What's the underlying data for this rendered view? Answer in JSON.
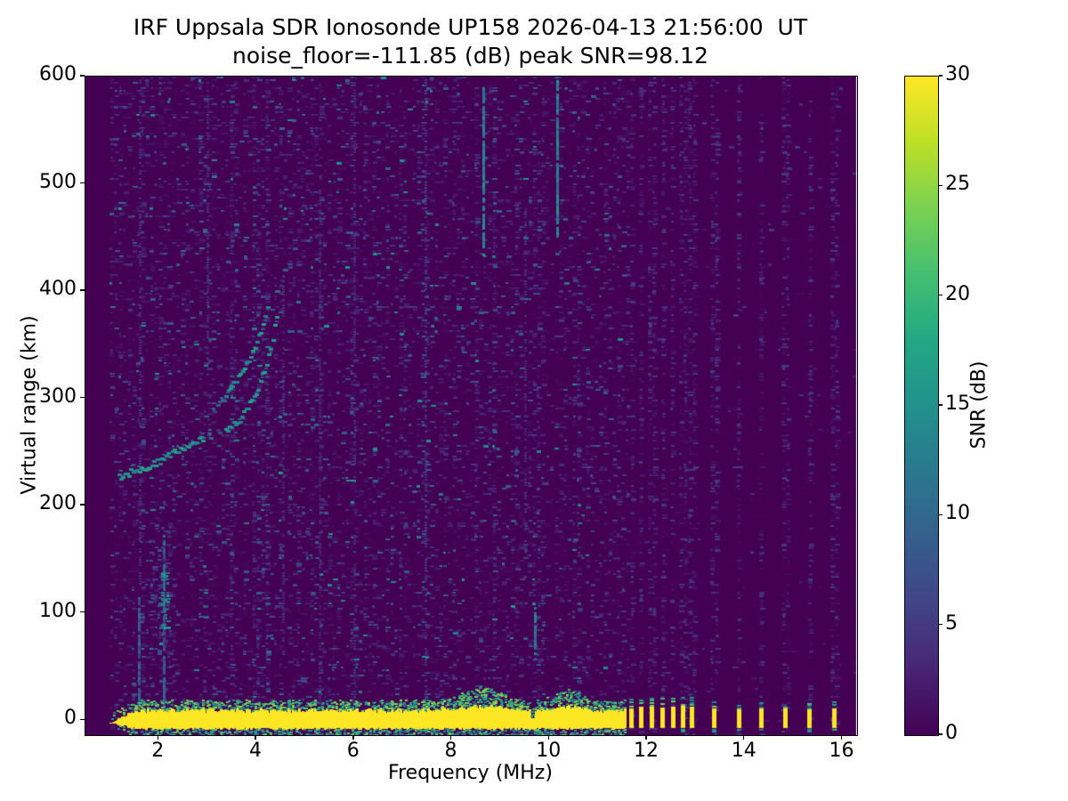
{
  "chart_data": {
    "type": "heatmap",
    "title": "IRF Uppsala SDR Ionosonde UP158 2026-04-13 21:56:00  UT",
    "subtitle": "noise_floor=-111.85 (dB) peak SNR=98.12",
    "xlabel": "Frequency (MHz)",
    "ylabel": "Virtual range (km)",
    "colorbar_label": "SNR (dB)",
    "noise_floor_db": -111.85,
    "peak_snr_db": 98.12,
    "station": "IRF Uppsala SDR Ionosonde UP158",
    "timestamp_ut": "2026-04-13 21:56:00",
    "xlim": [
      0.5,
      16.3
    ],
    "ylim": [
      -14,
      600
    ],
    "clim": [
      0,
      30
    ],
    "x_ticks": [
      2,
      4,
      6,
      8,
      10,
      12,
      14,
      16
    ],
    "y_ticks": [
      0,
      100,
      200,
      300,
      400,
      500,
      600
    ],
    "colorbar_ticks": [
      0,
      5,
      10,
      15,
      20,
      25,
      30
    ],
    "colormap": "viridis",
    "viridis_stops": [
      "#440154",
      "#482475",
      "#414487",
      "#355f8d",
      "#2a788e",
      "#21918c",
      "#22a884",
      "#44bf70",
      "#7ad151",
      "#bddf26",
      "#fde725"
    ],
    "freq_range_mhz": [
      1.0,
      16.27
    ],
    "ground_return": {
      "continuous_mhz": [
        1.0,
        11.55
      ],
      "core_km": [
        -7,
        9
      ],
      "fringe_top_km": 17,
      "bulges": [
        {
          "center_mhz": 8.6,
          "sigma_mhz": 0.55,
          "extra_km": 9
        },
        {
          "center_mhz": 10.35,
          "sigma_mhz": 0.35,
          "extra_km": 7
        }
      ],
      "notch_mhz": 9.65,
      "thin_below_mhz": 1.5,
      "snr_db": 30
    },
    "pulse_freqs_mhz": [
      11.67,
      11.88,
      12.09,
      12.31,
      12.53,
      12.73,
      12.91,
      13.37,
      13.88,
      14.33,
      14.82,
      15.32,
      15.83
    ],
    "echo_trace": {
      "main_points": [
        [
          1.15,
          228
        ],
        [
          1.5,
          233
        ],
        [
          1.85,
          240
        ],
        [
          2.2,
          248
        ],
        [
          2.55,
          257
        ],
        [
          2.85,
          264
        ],
        [
          3.35,
          272
        ],
        [
          3.6,
          280
        ],
        [
          3.8,
          292
        ],
        [
          3.95,
          305
        ],
        [
          4.1,
          323
        ],
        [
          4.22,
          342
        ],
        [
          4.32,
          362
        ],
        [
          4.4,
          381
        ]
      ],
      "branch_points": [
        [
          3.18,
          293
        ],
        [
          3.45,
          310
        ],
        [
          3.7,
          327
        ],
        [
          3.9,
          345
        ],
        [
          4.05,
          362
        ],
        [
          4.15,
          376
        ]
      ],
      "faint_gap_mhz": [
        2.88,
        3.33
      ],
      "snr_db": 16
    },
    "e_region_cluster": {
      "freq_mhz": [
        1.8,
        2.35
      ],
      "km": [
        45,
        185
      ],
      "core": {
        "freq_mhz": [
          2.0,
          2.2
        ],
        "km": [
          85,
          140
        ]
      }
    },
    "rfi_streaks": [
      {
        "freq_mhz": 8.65,
        "km": [
          435,
          592
        ],
        "snr_db": 13
      },
      {
        "freq_mhz": 10.15,
        "km": [
          452,
          600
        ],
        "snr_db": 13
      },
      {
        "freq_mhz": 9.7,
        "km": [
          58,
          108
        ],
        "snr_db": 11
      },
      {
        "freq_mhz": 2.1,
        "km": [
          10,
          175
        ],
        "snr_db": 9
      },
      {
        "freq_mhz": 1.6,
        "km": [
          15,
          120
        ],
        "snr_db": 8
      },
      {
        "freq_mhz": 7.47,
        "km": [
          -10,
          600
        ],
        "snr_db": 5
      },
      {
        "freq_mhz": 9.5,
        "km": [
          150,
          480
        ],
        "snr_db": 4
      },
      {
        "freq_mhz": 1.62,
        "km": [
          120,
          600
        ],
        "snr_db": 4
      },
      {
        "freq_mhz": 3.0,
        "km": [
          320,
          600
        ],
        "snr_db": 4
      },
      {
        "freq_mhz": 6.0,
        "km": [
          -5,
          600
        ],
        "snr_db": 4
      },
      {
        "freq_mhz": 4.55,
        "km": [
          60,
          420
        ],
        "snr_db": 4
      },
      {
        "freq_mhz": 5.3,
        "km": [
          0,
          500
        ],
        "snr_db": 3
      }
    ],
    "noise": {
      "background_snr_db": 0,
      "speckle_max_db": 9,
      "left_density": 0.32,
      "right_density": 0.012,
      "pulse_column_density": 0.5
    }
  }
}
